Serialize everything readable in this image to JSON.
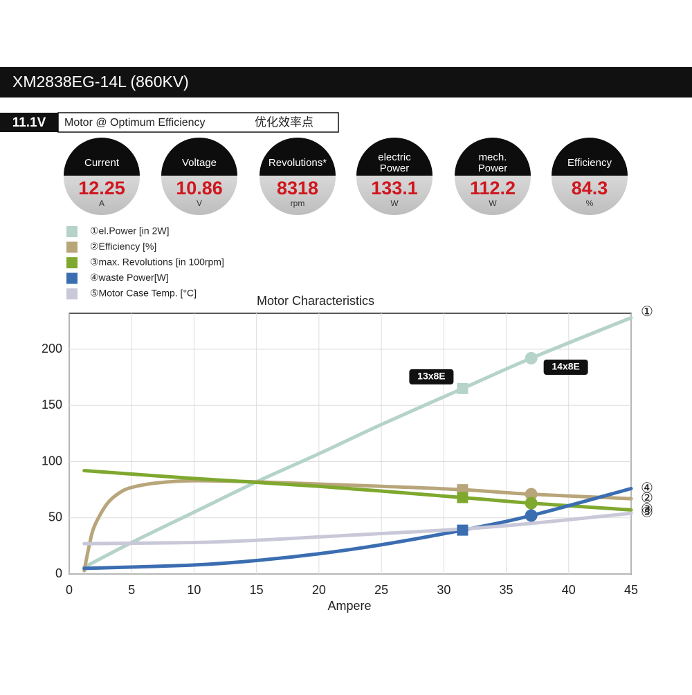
{
  "header": {
    "title": "XM2838EG-14L (860KV)",
    "voltage": "11.1V",
    "label": "Motor @ Optimum Efficiency",
    "label_cn": "优化效率点"
  },
  "stats": [
    {
      "label": "Current",
      "value": 12.25,
      "unit": "A"
    },
    {
      "label": "Voltage",
      "value": 10.86,
      "unit": "V"
    },
    {
      "label": "Revolutions*",
      "value": 8318,
      "unit": "rpm"
    },
    {
      "label": "electric Power",
      "value": 133.1,
      "unit": "W"
    },
    {
      "label": "mech. Power",
      "value": 112.2,
      "unit": "W"
    },
    {
      "label": "Efficiency",
      "value": 84.3,
      "unit": "%"
    }
  ],
  "chart_data": {
    "type": "line",
    "title": "Motor Characteristics",
    "x_label": "Ampere",
    "xlim": [
      0,
      45
    ],
    "xticks": [
      0,
      5,
      10,
      15,
      20,
      25,
      30,
      35,
      40,
      45
    ],
    "ylim": [
      0,
      232
    ],
    "yticks": [
      0,
      50,
      100,
      150,
      200
    ],
    "grid": true,
    "operating_points": [
      {
        "label": "13x8E",
        "x": 31.5,
        "shape": "square"
      },
      {
        "label": "14x8E",
        "x": 37,
        "shape": "circle"
      }
    ],
    "series": [
      {
        "name": "①el.Power [in 2W]",
        "end_label": "①",
        "color": "#b5d3c8",
        "markers": true,
        "x": [
          1.2,
          5,
          10,
          15,
          20,
          25,
          31.5,
          37,
          45
        ],
        "values": [
          6,
          28,
          55,
          82,
          107,
          133,
          165,
          192,
          228
        ]
      },
      {
        "name": "②Efficiency [%]",
        "end_label": "②",
        "color": "#b8a57a",
        "markers": true,
        "x": [
          1.2,
          1.6,
          2,
          3,
          4,
          5,
          7,
          10,
          15,
          20,
          25,
          31.5,
          37,
          45
        ],
        "values": [
          3,
          25,
          42,
          62,
          72,
          77,
          81,
          83,
          82,
          80,
          78,
          75,
          71,
          67
        ]
      },
      {
        "name": "③max. Revolutions [in 100rpm]",
        "end_label": "③",
        "color": "#7fa82f",
        "markers": true,
        "x": [
          1.2,
          10,
          20,
          31.5,
          37,
          45
        ],
        "values": [
          92,
          85,
          78,
          68,
          63,
          57
        ]
      },
      {
        "name": "④waste Power[W]",
        "end_label": "④",
        "color": "#3b6db1",
        "markers": true,
        "x": [
          1.2,
          10,
          15,
          20,
          25,
          31.5,
          37,
          45
        ],
        "values": [
          5,
          8,
          12,
          18,
          26,
          39,
          52,
          76
        ]
      },
      {
        "name": "⑤Motor Case Temp. [°C]",
        "end_label": "⑤",
        "color": "#c8c8d8",
        "markers": false,
        "x": [
          1.2,
          10,
          15,
          20,
          25,
          31.5,
          37,
          45
        ],
        "values": [
          27,
          28,
          30,
          33,
          36,
          40,
          45,
          54
        ]
      }
    ]
  }
}
